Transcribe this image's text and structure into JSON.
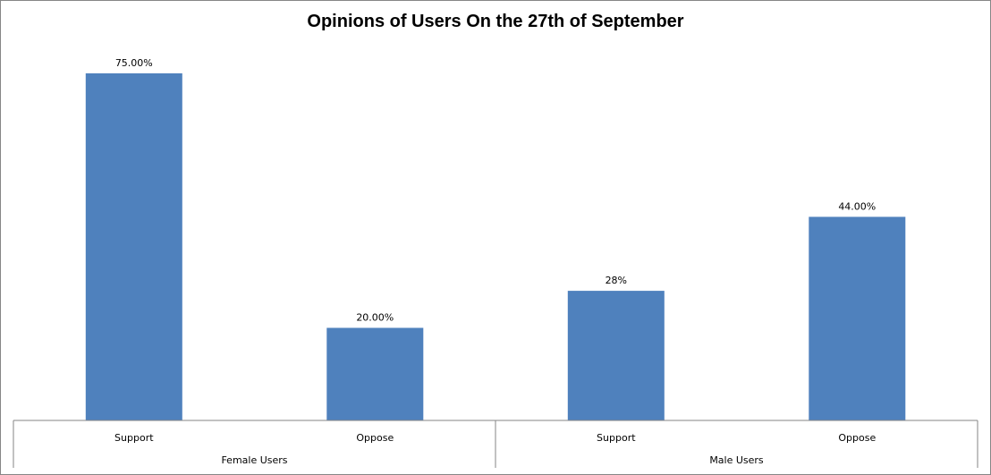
{
  "chart_data": {
    "type": "bar",
    "title": "Opinions of Users On the 27th of September",
    "groups": [
      {
        "label": "Female Users",
        "categories": [
          "Support",
          "Oppose"
        ]
      },
      {
        "label": "Male Users",
        "categories": [
          "Support",
          "Oppose"
        ]
      }
    ],
    "categories": [
      "Support",
      "Oppose",
      "Support",
      "Oppose"
    ],
    "values": [
      75,
      20,
      28,
      44
    ],
    "data_labels": [
      "75.00%",
      "20.00%",
      "28%",
      "44.00%"
    ],
    "ylim": [
      0,
      75
    ],
    "grid": false,
    "legend": "none",
    "bar_color": "#4F81BD"
  }
}
